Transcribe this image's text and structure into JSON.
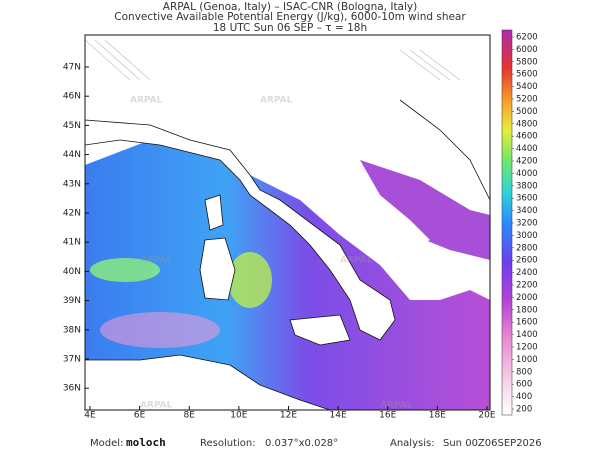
{
  "header": {
    "line1": "ARPAL (Genoa, Italy)  –  ISAC-CNR (Bologna, Italy)",
    "line2": "Convective Available Potential Energy (J/kg), 6000-10m wind shear",
    "line3": "18 UTC Sun 06 SEP  –   τ = 18h"
  },
  "map": {
    "lat_labels": [
      "47N",
      "46N",
      "45N",
      "44N",
      "43N",
      "42N",
      "41N",
      "40N",
      "39N",
      "38N",
      "37N",
      "36N"
    ],
    "lon_labels": [
      "4E",
      "6E",
      "8E",
      "10E",
      "12E",
      "14E",
      "16E",
      "18E",
      "20E"
    ],
    "watermark": "ARPAL"
  },
  "colorbar": {
    "labels": [
      200,
      400,
      600,
      800,
      1000,
      1200,
      1400,
      1600,
      1800,
      2000,
      2200,
      2400,
      2600,
      2800,
      3000,
      3200,
      3400,
      3600,
      3800,
      4000,
      4200,
      4400,
      4600,
      4800,
      5000,
      5200,
      5400,
      5600,
      5800,
      6000,
      6200
    ]
  },
  "footer": {
    "model_label": "Model:",
    "model": "moloch",
    "resolution_label": "Resolution:",
    "resolution": "0.037°x0.028°",
    "analysis_label": "Analysis:",
    "analysis": "Sun 00Z06SEP2026"
  }
}
